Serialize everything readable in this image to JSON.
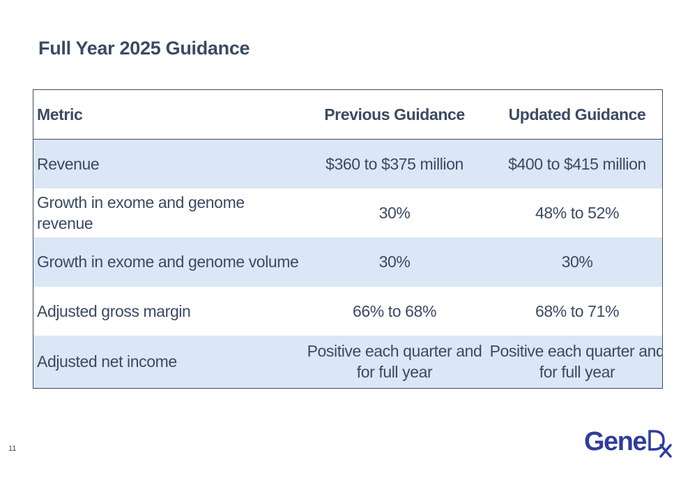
{
  "slide": {
    "title": "Full Year 2025 Guidance",
    "page_number": "11"
  },
  "table": {
    "headers": {
      "metric": "Metric",
      "previous": "Previous Guidance",
      "updated": "Updated Guidance"
    },
    "rows": [
      {
        "metric": "Revenue",
        "previous": "$360 to $375 million",
        "updated": "$400 to $415 million"
      },
      {
        "metric": "Growth in exome and genome revenue",
        "previous": "30%",
        "updated": "48% to 52%"
      },
      {
        "metric": "Growth in exome and genome volume",
        "previous": "30%",
        "updated": "30%"
      },
      {
        "metric": "Adjusted gross margin",
        "previous": "66% to 68%",
        "updated": "68% to 71%"
      },
      {
        "metric": "Adjusted net income",
        "previous": "Positive each quarter and for full year",
        "updated": "Positive each quarter and for full year"
      }
    ]
  },
  "logo": {
    "text_gene": "Gene",
    "text_dx": "Dx",
    "color": "#2f3d9e"
  },
  "colors": {
    "text": "#3b4a63",
    "row_stripe": "#dbe7f6",
    "border": "#3f4a5c"
  }
}
